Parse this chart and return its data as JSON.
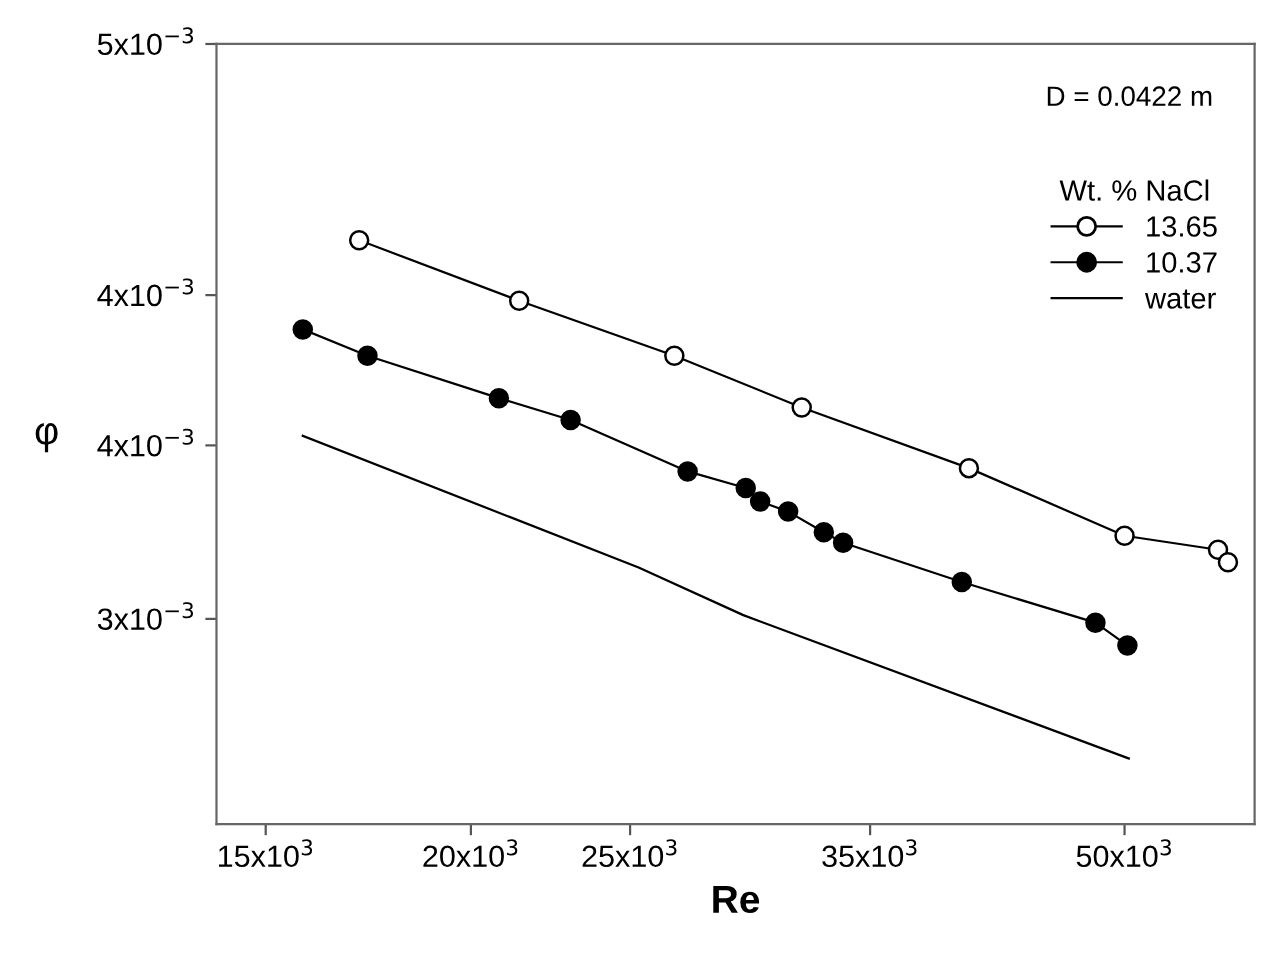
{
  "chart_data": {
    "type": "line",
    "xlabel": "Re",
    "ylabel": "φ",
    "legend_title": "Wt. % NaCl",
    "annotations": [
      "D = 0.0422 m"
    ],
    "log": "xy",
    "grid": false,
    "legend": "top right",
    "line_style": "solid",
    "xlim": [
      14000,
      60000
    ],
    "xticks": [
      {
        "value": 15000,
        "label": "15x10$^{3}$"
      },
      {
        "value": 20000,
        "label": "20x10$^{3}$"
      },
      {
        "value": 25000,
        "label": "25x10$^{3}$"
      },
      {
        "value": 35000,
        "label": "35x10$^{3}$"
      },
      {
        "value": 50000,
        "label": "50x10$^{3}$"
      }
    ],
    "ylim": [
      0.0025,
      0.005
    ],
    "yticks": [
      {
        "value": 0.003,
        "label": "3x10$^{−3}$"
      },
      {
        "value": 0.0035,
        "label": "4x10$^{−3}$"
      },
      {
        "value": 0.004,
        "label": "4x10$^{−3}$"
      },
      {
        "value": 0.005,
        "label": "5x10$^{−3}$"
      }
    ],
    "series": [
      {
        "name": "13.65",
        "color": "#000000",
        "marker": "circle",
        "colors": [
          "#ffffff",
          "#ffffff",
          "#ffffff",
          "#ffffff",
          "#ffffff",
          "#ffffff",
          "#ffffff",
          "#ffffff"
        ],
        "x": [
          17100,
          21400,
          26600,
          31800,
          40200,
          50000,
          57000,
          57800
        ],
        "values": [
          0.0042,
          0.00398,
          0.00379,
          0.00362,
          0.00343,
          0.00323,
          0.00319,
          0.003155
        ]
      },
      {
        "name": "10.37",
        "color": "#000000",
        "marker": "circle",
        "x": [
          15800,
          17300,
          20800,
          23000,
          27100,
          29400,
          30000,
          31200,
          32800,
          33700,
          39800,
          48000,
          50200
        ],
        "values": [
          0.00388,
          0.00379,
          0.00365,
          0.00358,
          0.00342,
          0.00337,
          0.00333,
          0.0033,
          0.00324,
          0.00321,
          0.0031,
          0.00299,
          0.00293
        ]
      },
      {
        "name": "water",
        "color": "#000000",
        "marker": "none",
        "x": [
          15800,
          25300,
          29300,
          50300
        ],
        "values": [
          0.00353,
          0.00314,
          0.00301,
          0.00265
        ]
      }
    ]
  }
}
